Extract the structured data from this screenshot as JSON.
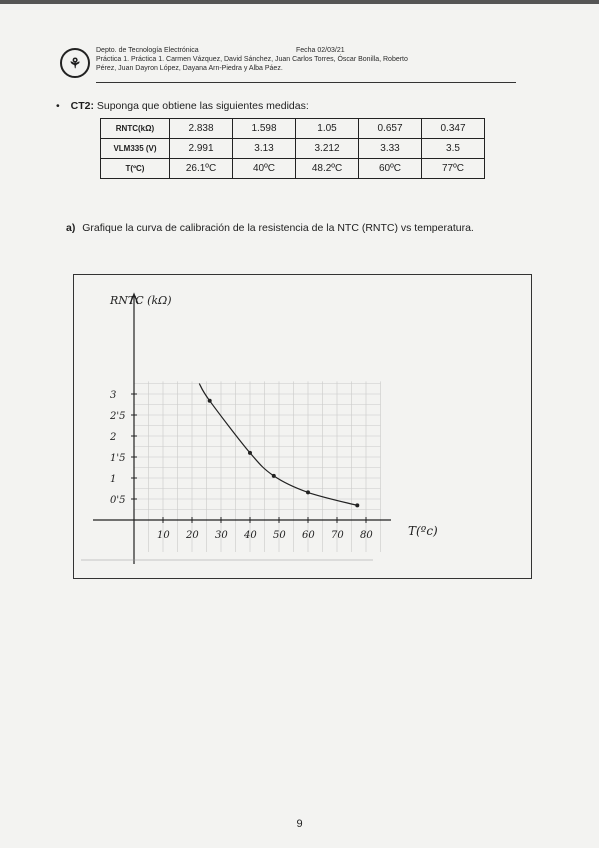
{
  "header": {
    "department": "Depto. de Tecnología Electrónica",
    "date": "Fecha 02/03/21",
    "authors_line1": "Práctica 1. Práctica 1. Carmen Vázquez, David Sánchez, Juan Carlos Torres, Óscar Bonilla, Roberto",
    "authors_line2": "Pérez, Juan Dayron López, Dayana Arn-Piedra y Alba Páez."
  },
  "ct2": {
    "label": "CT2:",
    "text": "Suponga que obtiene las siguientes medidas:"
  },
  "measurements": {
    "rows": [
      {
        "header": "RNTC(kΩ)",
        "values": [
          "2.838",
          "1.598",
          "1.05",
          "0.657",
          "0.347"
        ]
      },
      {
        "header": "VLM335 (V)",
        "values": [
          "2.991",
          "3.13",
          "3.212",
          "3.33",
          "3.5"
        ]
      },
      {
        "header": "T(ºC)",
        "values": [
          "26.1ºC",
          "40ºC",
          "48.2ºC",
          "60ºC",
          "77ºC"
        ]
      }
    ]
  },
  "question": {
    "label": "a)",
    "text": "Grafique la curva de calibración de la resistencia de la NTC (RNTC) vs temperatura."
  },
  "chart_data": {
    "type": "line",
    "title": "",
    "xlabel": "T(ºc)",
    "ylabel": "RNTC (kΩ)",
    "x_ticks": [
      "10",
      "20",
      "30",
      "40",
      "50",
      "60",
      "70",
      "80"
    ],
    "y_ticks": [
      "0'5",
      "1",
      "1'5",
      "2",
      "2'5",
      "3"
    ],
    "xlim": [
      0,
      85
    ],
    "ylim": [
      0,
      3.3
    ],
    "grid": true,
    "series": [
      {
        "x": [
          26.1,
          40,
          48.2,
          60,
          77
        ],
        "y": [
          2.838,
          1.598,
          1.05,
          0.657,
          0.347
        ]
      }
    ]
  },
  "page": {
    "number": "9"
  }
}
